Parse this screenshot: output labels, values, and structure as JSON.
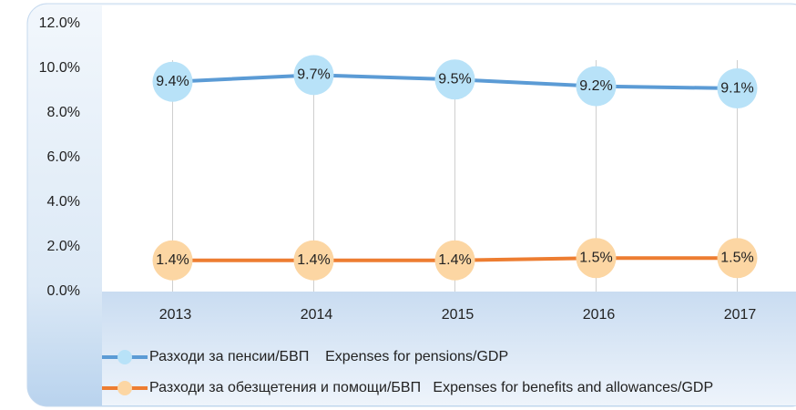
{
  "chart_data": {
    "type": "line",
    "categories": [
      "2013",
      "2014",
      "2015",
      "2016",
      "2017"
    ],
    "series": [
      {
        "name": "Разходи за пенсии/БВП    Expenses for pensions/GDP",
        "color": "#5b9bd5",
        "marker_color": "#b8e2f8",
        "values": [
          9.4,
          9.7,
          9.5,
          9.2,
          9.1
        ],
        "value_labels": [
          "9.4%",
          "9.7%",
          "9.5%",
          "9.2%",
          "9.1%"
        ]
      },
      {
        "name": "Разходи за обезщетения и помощи/БВП   Expenses for benefits and allowances/GDP",
        "color": "#ed7d31",
        "marker_color": "#fcd6a3",
        "values": [
          1.4,
          1.4,
          1.4,
          1.5,
          1.5
        ],
        "value_labels": [
          "1.4%",
          "1.4%",
          "1.4%",
          "1.5%",
          "1.5%"
        ]
      }
    ],
    "ylim": [
      0,
      12
    ],
    "yticks": [
      {
        "value": 0,
        "label": "0.0%"
      },
      {
        "value": 2,
        "label": "2.0%"
      },
      {
        "value": 4,
        "label": "4.0%"
      },
      {
        "value": 6,
        "label": "6.0%"
      },
      {
        "value": 8,
        "label": "8.0%"
      },
      {
        "value": 10,
        "label": "10.0%"
      },
      {
        "value": 12,
        "label": "12.0%"
      }
    ],
    "grid": true
  }
}
